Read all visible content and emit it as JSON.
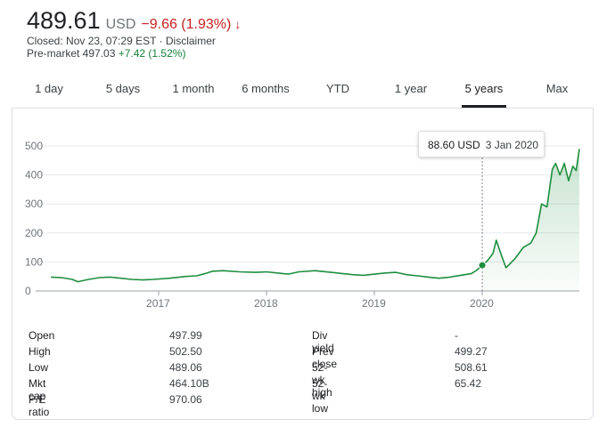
{
  "header": {
    "price": "489.61",
    "currency": "USD",
    "change": "−9.66 (1.93%)",
    "arrow": "↓",
    "closed_line_1": "Closed: Nov 23, 07:29 EST · ",
    "disclaimer_label": "Disclaimer",
    "premarket_label": "Pre-market 497.03 ",
    "premarket_change": "+7.42 (1.52%)"
  },
  "tabs": [
    "1 day",
    "5 days",
    "1 month",
    "6 months",
    "YTD",
    "1 year",
    "5 years",
    "Max"
  ],
  "active_tab": "5 years",
  "tooltip": {
    "price": "88.60 USD",
    "date": "3 Jan 2020"
  },
  "colors": {
    "line": "#1e8e3e",
    "negative": "#c5221f",
    "positive": "#188038"
  },
  "chart_data": {
    "type": "area",
    "xlabel": "",
    "ylabel": "",
    "ylim": [
      0,
      500
    ],
    "xlim": [
      2016.0,
      2020.9
    ],
    "y_ticks": [
      "0",
      "100",
      "200",
      "300",
      "400",
      "500"
    ],
    "x_ticks": [
      {
        "label": "2017",
        "value": 2017.0
      },
      {
        "label": "2018",
        "value": 2018.0
      },
      {
        "label": "2019",
        "value": 2019.0
      },
      {
        "label": "2020",
        "value": 2020.0
      }
    ],
    "grid": true,
    "series": [
      {
        "points": [
          [
            2016.0,
            48
          ],
          [
            2016.1,
            46
          ],
          [
            2016.2,
            40
          ],
          [
            2016.25,
            32
          ],
          [
            2016.35,
            40
          ],
          [
            2016.45,
            46
          ],
          [
            2016.55,
            48
          ],
          [
            2016.65,
            44
          ],
          [
            2016.75,
            40
          ],
          [
            2016.85,
            38
          ],
          [
            2016.95,
            40
          ],
          [
            2017.1,
            44
          ],
          [
            2017.25,
            50
          ],
          [
            2017.35,
            52
          ],
          [
            2017.45,
            62
          ],
          [
            2017.5,
            68
          ],
          [
            2017.6,
            70
          ],
          [
            2017.75,
            66
          ],
          [
            2017.9,
            64
          ],
          [
            2018.0,
            66
          ],
          [
            2018.1,
            62
          ],
          [
            2018.2,
            58
          ],
          [
            2018.3,
            66
          ],
          [
            2018.45,
            70
          ],
          [
            2018.6,
            64
          ],
          [
            2018.7,
            60
          ],
          [
            2018.8,
            56
          ],
          [
            2018.9,
            54
          ],
          [
            2019.0,
            58
          ],
          [
            2019.1,
            62
          ],
          [
            2019.2,
            64
          ],
          [
            2019.3,
            56
          ],
          [
            2019.4,
            52
          ],
          [
            2019.5,
            48
          ],
          [
            2019.6,
            44
          ],
          [
            2019.7,
            48
          ],
          [
            2019.8,
            54
          ],
          [
            2019.9,
            60
          ],
          [
            2019.95,
            72
          ],
          [
            2020.0,
            88.6
          ],
          [
            2020.05,
            105
          ],
          [
            2020.1,
            130
          ],
          [
            2020.13,
            175
          ],
          [
            2020.18,
            120
          ],
          [
            2020.22,
            80
          ],
          [
            2020.3,
            110
          ],
          [
            2020.38,
            150
          ],
          [
            2020.45,
            165
          ],
          [
            2020.5,
            200
          ],
          [
            2020.55,
            300
          ],
          [
            2020.6,
            290
          ],
          [
            2020.65,
            420
          ],
          [
            2020.68,
            440
          ],
          [
            2020.72,
            400
          ],
          [
            2020.76,
            440
          ],
          [
            2020.8,
            380
          ],
          [
            2020.84,
            430
          ],
          [
            2020.87,
            415
          ],
          [
            2020.9,
            489.61
          ]
        ]
      }
    ],
    "highlight": {
      "x": 2020.0,
      "y": 88.6
    }
  },
  "stats": {
    "left": [
      {
        "label": "Open",
        "value": "497.99"
      },
      {
        "label": "High",
        "value": "502.50"
      },
      {
        "label": "Low",
        "value": "489.06"
      },
      {
        "label": "Mkt cap",
        "value": "464.10B"
      },
      {
        "label": "P/E ratio",
        "value": "970.06"
      }
    ],
    "right": [
      {
        "label": "Div yield",
        "value": "-"
      },
      {
        "label": "Prev close",
        "value": "499.27"
      },
      {
        "label": "52-wk high",
        "value": "508.61"
      },
      {
        "label": "52-wk low",
        "value": "65.42"
      }
    ]
  }
}
